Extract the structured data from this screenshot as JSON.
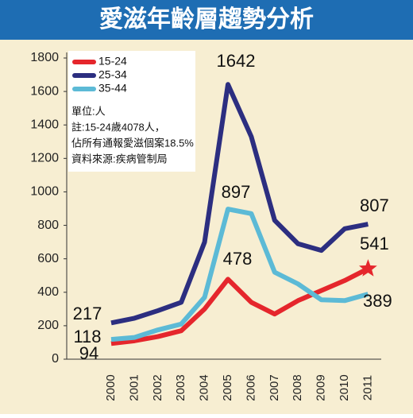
{
  "chart_data": {
    "type": "line",
    "title": "愛滋年齡層趨勢分析",
    "categories": [
      "2000",
      "2001",
      "2002",
      "2003",
      "2004",
      "2005",
      "2006",
      "2007",
      "2008",
      "2009",
      "2010",
      "2011"
    ],
    "series": [
      {
        "name": "15-24",
        "color": "#e5262c",
        "values": [
          94,
          110,
          135,
          170,
          300,
          478,
          340,
          270,
          350,
          410,
          470,
          541
        ],
        "value_labels": [
          "94",
          null,
          null,
          null,
          null,
          "478",
          null,
          null,
          null,
          null,
          null,
          "541"
        ]
      },
      {
        "name": "25-34",
        "color": "#2c2e80",
        "values": [
          217,
          245,
          290,
          340,
          700,
          1642,
          1330,
          830,
          690,
          650,
          780,
          807
        ],
        "value_labels": [
          "217",
          null,
          null,
          null,
          null,
          "1642",
          null,
          null,
          null,
          null,
          null,
          "807"
        ]
      },
      {
        "name": "35-44",
        "color": "#5cbad6",
        "values": [
          118,
          130,
          175,
          210,
          370,
          897,
          870,
          520,
          450,
          355,
          350,
          389
        ],
        "value_labels": [
          "118",
          null,
          null,
          null,
          null,
          "897",
          null,
          null,
          null,
          null,
          null,
          "389"
        ]
      }
    ],
    "notes": [
      "單位:人",
      "註:15-24歲4078人，",
      "佔所有通報愛滋個案18.5%",
      "資料來源:疾病管制局"
    ],
    "ylim": [
      0,
      1800
    ],
    "yticks": [
      0,
      200,
      400,
      600,
      800,
      1000,
      1200,
      1400,
      1600,
      1800
    ],
    "grid": false
  }
}
